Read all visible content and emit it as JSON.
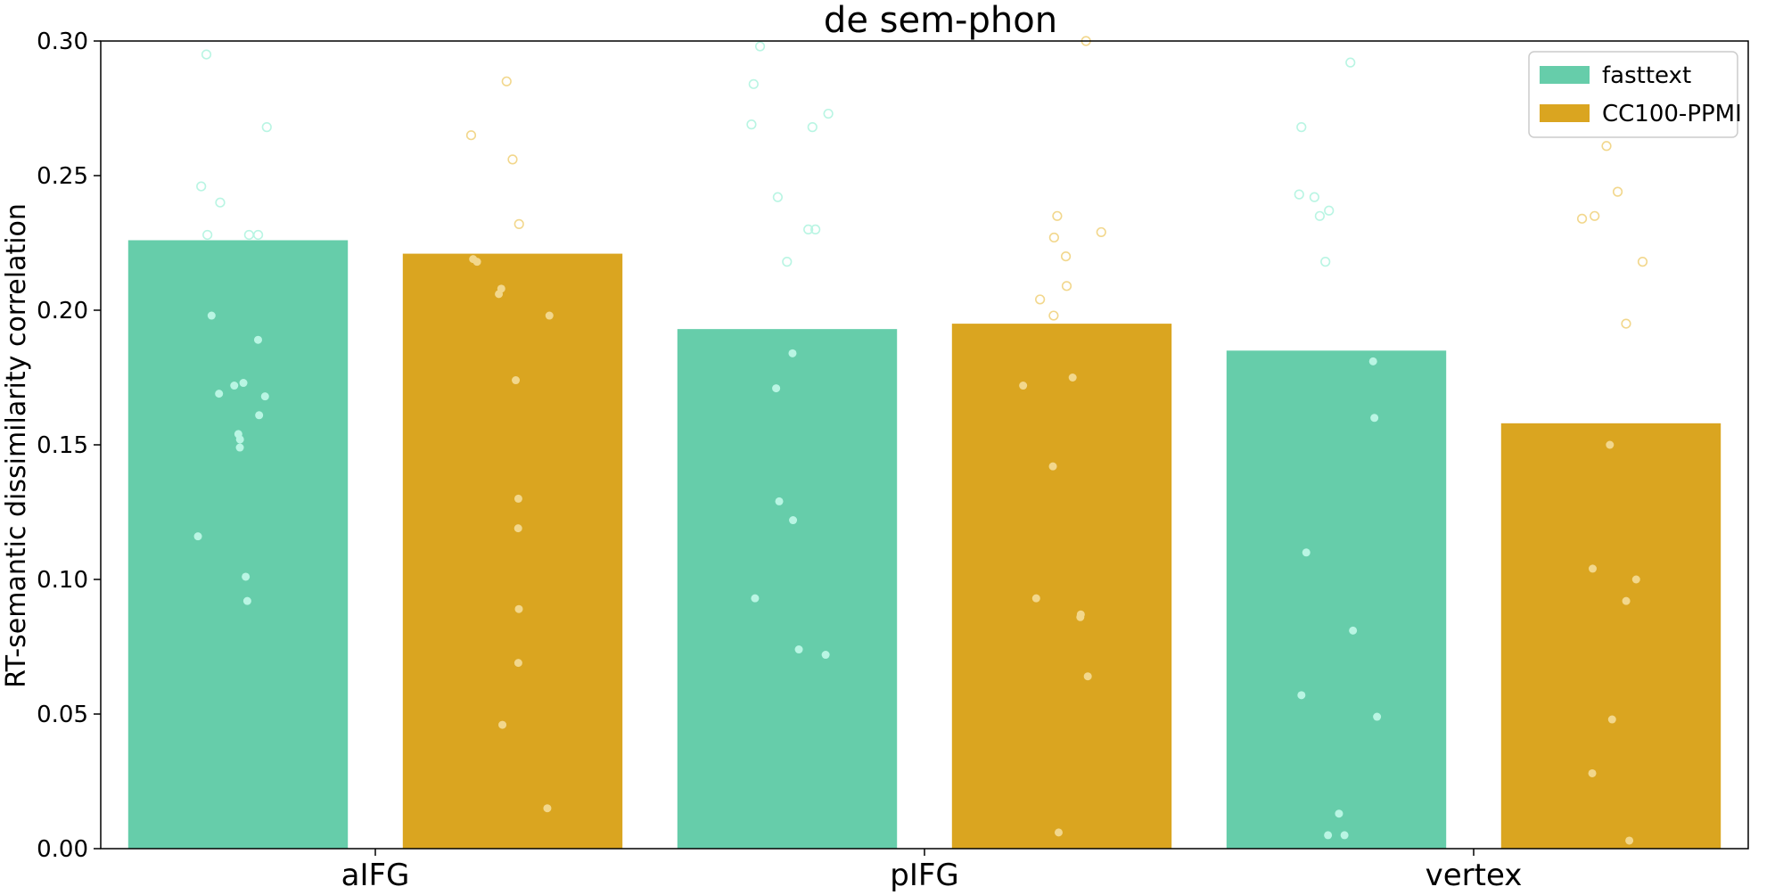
{
  "chart_data": {
    "type": "bar",
    "title": "de sem-phon",
    "xlabel": "",
    "ylabel": "RT-semantic dissimilarity correlation",
    "categories": [
      "aIFG",
      "pIFG",
      "vertex"
    ],
    "ylim": [
      0,
      0.3
    ],
    "yticks": [
      "0.00",
      "0.05",
      "0.10",
      "0.15",
      "0.20",
      "0.25",
      "0.30"
    ],
    "grid": false,
    "legend_position": "top-right",
    "series": [
      {
        "name": "fasttext",
        "color": "#66CDAA",
        "point_color": "#B9F5E3",
        "values": [
          0.226,
          0.193,
          0.185
        ],
        "points_filled": [
          [
            0.198,
            0.189,
            0.173,
            0.172,
            0.169,
            0.168,
            0.161,
            0.154,
            0.152,
            0.149,
            0.116,
            0.101,
            0.092
          ],
          [
            0.184,
            0.171,
            0.129,
            0.122,
            0.093,
            0.074,
            0.072
          ],
          [
            0.181,
            0.16,
            0.11,
            0.081,
            0.057,
            0.049,
            0.013,
            0.005,
            0.005
          ]
        ],
        "points_hollow": [
          [
            0.295,
            0.268,
            0.246,
            0.24,
            0.228,
            0.228,
            0.228
          ],
          [
            0.298,
            0.284,
            0.273,
            0.269,
            0.268,
            0.242,
            0.23,
            0.23,
            0.218
          ],
          [
            0.292,
            0.268,
            0.243,
            0.242,
            0.237,
            0.235,
            0.218
          ]
        ]
      },
      {
        "name": "CC100-PPMI",
        "color": "#DAA520",
        "point_color": "#F2D78C",
        "values": [
          0.221,
          0.195,
          0.158
        ],
        "points_filled": [
          [
            0.219,
            0.218,
            0.208,
            0.206,
            0.198,
            0.174,
            0.13,
            0.119,
            0.089,
            0.069,
            0.046,
            0.015
          ],
          [
            0.175,
            0.172,
            0.142,
            0.093,
            0.087,
            0.086,
            0.064,
            0.006
          ],
          [
            0.15,
            0.104,
            0.1,
            0.092,
            0.048,
            0.028,
            0.003
          ]
        ],
        "points_hollow": [
          [
            0.285,
            0.265,
            0.256,
            0.232
          ],
          [
            0.3,
            0.235,
            0.229,
            0.227,
            0.22,
            0.209,
            0.204,
            0.198
          ],
          [
            0.261,
            0.244,
            0.235,
            0.234,
            0.218,
            0.195
          ]
        ]
      }
    ]
  }
}
